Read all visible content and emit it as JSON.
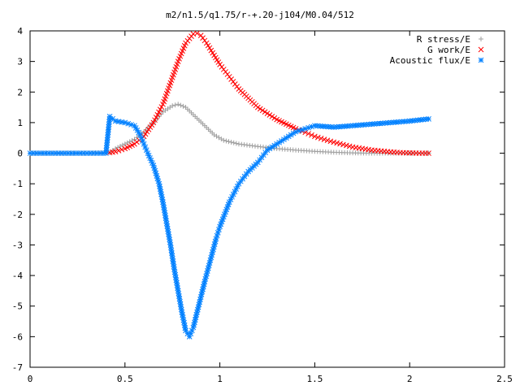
{
  "chart_data": {
    "type": "scatter",
    "title": "m2/n1.5/q1.75/r-+.20-j104/M0.04/512",
    "xlabel": "",
    "ylabel": "",
    "xlim": [
      0,
      2.5
    ],
    "ylim": [
      -7,
      4
    ],
    "x_ticks": [
      {
        "value": 0,
        "label": "0"
      },
      {
        "value": 0.5,
        "label": "0.5"
      },
      {
        "value": 1,
        "label": "1"
      },
      {
        "value": 1.5,
        "label": "1.5"
      },
      {
        "value": 2,
        "label": "2"
      },
      {
        "value": 2.5,
        "label": "2.5"
      }
    ],
    "y_ticks": [
      {
        "value": 4,
        "label": "4"
      },
      {
        "value": 3,
        "label": "3"
      },
      {
        "value": 2,
        "label": "2"
      },
      {
        "value": 1,
        "label": "1"
      },
      {
        "value": 0,
        "label": "0"
      },
      {
        "value": -1,
        "label": "-1"
      },
      {
        "value": -2,
        "label": "-2"
      },
      {
        "value": -3,
        "label": "-3"
      },
      {
        "value": -4,
        "label": "-4"
      },
      {
        "value": -5,
        "label": "-5"
      },
      {
        "value": -6,
        "label": "-6"
      },
      {
        "value": -7,
        "label": "-7"
      }
    ],
    "grid": false,
    "legend_position": "top-right",
    "series": [
      {
        "name": "R stress/E",
        "marker": "plus",
        "color": "#a0a0a0",
        "points": [
          [
            0.0,
            0.0
          ],
          [
            0.1,
            0.0
          ],
          [
            0.2,
            0.0
          ],
          [
            0.3,
            0.0
          ],
          [
            0.42,
            0.02
          ],
          [
            0.45,
            0.15
          ],
          [
            0.5,
            0.3
          ],
          [
            0.55,
            0.45
          ],
          [
            0.6,
            0.7
          ],
          [
            0.65,
            1.0
          ],
          [
            0.7,
            1.35
          ],
          [
            0.75,
            1.55
          ],
          [
            0.78,
            1.6
          ],
          [
            0.82,
            1.5
          ],
          [
            0.87,
            1.2
          ],
          [
            0.92,
            0.9
          ],
          [
            0.97,
            0.6
          ],
          [
            1.02,
            0.42
          ],
          [
            1.1,
            0.3
          ],
          [
            1.2,
            0.22
          ],
          [
            1.3,
            0.15
          ],
          [
            1.4,
            0.1
          ],
          [
            1.5,
            0.06
          ],
          [
            1.6,
            0.03
          ],
          [
            1.7,
            0.01
          ],
          [
            1.8,
            0.0
          ],
          [
            1.9,
            0.0
          ],
          [
            2.0,
            0.0
          ],
          [
            2.1,
            0.0
          ]
        ]
      },
      {
        "name": "G work/E",
        "marker": "cross",
        "color": "#ff0000",
        "points": [
          [
            0.42,
            0.02
          ],
          [
            0.45,
            0.05
          ],
          [
            0.5,
            0.15
          ],
          [
            0.55,
            0.3
          ],
          [
            0.6,
            0.55
          ],
          [
            0.65,
            1.0
          ],
          [
            0.7,
            1.6
          ],
          [
            0.74,
            2.3
          ],
          [
            0.78,
            3.0
          ],
          [
            0.82,
            3.6
          ],
          [
            0.86,
            3.9
          ],
          [
            0.88,
            3.92
          ],
          [
            0.9,
            3.85
          ],
          [
            0.93,
            3.6
          ],
          [
            0.97,
            3.2
          ],
          [
            1.0,
            2.9
          ],
          [
            1.05,
            2.5
          ],
          [
            1.1,
            2.1
          ],
          [
            1.15,
            1.8
          ],
          [
            1.2,
            1.5
          ],
          [
            1.25,
            1.3
          ],
          [
            1.3,
            1.1
          ],
          [
            1.35,
            0.95
          ],
          [
            1.4,
            0.8
          ],
          [
            1.45,
            0.68
          ],
          [
            1.5,
            0.55
          ],
          [
            1.55,
            0.45
          ],
          [
            1.6,
            0.36
          ],
          [
            1.65,
            0.28
          ],
          [
            1.7,
            0.2
          ],
          [
            1.75,
            0.15
          ],
          [
            1.8,
            0.1
          ],
          [
            1.85,
            0.07
          ],
          [
            1.9,
            0.04
          ],
          [
            1.95,
            0.02
          ],
          [
            2.0,
            0.01
          ],
          [
            2.05,
            0.0
          ],
          [
            2.1,
            0.0
          ]
        ]
      },
      {
        "name": "Acoustic flux/E",
        "marker": "star",
        "color": "#0080ff",
        "points": [
          [
            0.0,
            0.0
          ],
          [
            0.05,
            0.0
          ],
          [
            0.1,
            0.0
          ],
          [
            0.15,
            0.0
          ],
          [
            0.2,
            0.0
          ],
          [
            0.25,
            0.0
          ],
          [
            0.3,
            0.0
          ],
          [
            0.35,
            0.0
          ],
          [
            0.4,
            0.0
          ],
          [
            0.42,
            1.2
          ],
          [
            0.45,
            1.05
          ],
          [
            0.5,
            1.0
          ],
          [
            0.55,
            0.9
          ],
          [
            0.58,
            0.6
          ],
          [
            0.6,
            0.3
          ],
          [
            0.62,
            0.0
          ],
          [
            0.65,
            -0.4
          ],
          [
            0.68,
            -1.0
          ],
          [
            0.7,
            -1.6
          ],
          [
            0.72,
            -2.3
          ],
          [
            0.74,
            -3.0
          ],
          [
            0.76,
            -3.8
          ],
          [
            0.78,
            -4.5
          ],
          [
            0.8,
            -5.2
          ],
          [
            0.82,
            -5.8
          ],
          [
            0.84,
            -6.0
          ],
          [
            0.86,
            -5.7
          ],
          [
            0.88,
            -5.2
          ],
          [
            0.9,
            -4.7
          ],
          [
            0.92,
            -4.2
          ],
          [
            0.95,
            -3.5
          ],
          [
            0.98,
            -2.8
          ],
          [
            1.0,
            -2.4
          ],
          [
            1.05,
            -1.6
          ],
          [
            1.1,
            -1.0
          ],
          [
            1.15,
            -0.6
          ],
          [
            1.2,
            -0.3
          ],
          [
            1.25,
            0.1
          ],
          [
            1.3,
            0.3
          ],
          [
            1.35,
            0.5
          ],
          [
            1.4,
            0.7
          ],
          [
            1.45,
            0.8
          ],
          [
            1.5,
            0.9
          ],
          [
            1.6,
            0.85
          ],
          [
            1.7,
            0.9
          ],
          [
            1.8,
            0.95
          ],
          [
            1.9,
            1.0
          ],
          [
            2.0,
            1.05
          ],
          [
            2.1,
            1.12
          ]
        ]
      }
    ]
  }
}
